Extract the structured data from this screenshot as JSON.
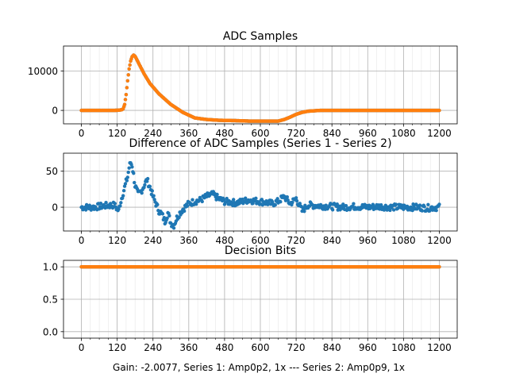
{
  "figure": {
    "footer": "Gain: -2.0077, Series 1: Amp0p2, 1x --- Series 2: Amp0p9, 1x"
  },
  "colors": {
    "series1": "#1f77b4",
    "series2": "#ff7f0e"
  },
  "chart_data": [
    {
      "type": "scatter",
      "title": "ADC Samples",
      "xlabel": "",
      "ylabel": "",
      "xlim": [
        -60,
        1260
      ],
      "ylim": [
        -3400,
        16300
      ],
      "xticks": [
        0,
        120,
        240,
        360,
        480,
        600,
        720,
        840,
        960,
        1080,
        1200
      ],
      "xtick_labels": [
        "0",
        "120",
        "240",
        "360",
        "480",
        "600",
        "720",
        "840",
        "960",
        "1080",
        "1200"
      ],
      "yticks": [
        0,
        10000
      ],
      "ytick_labels": [
        "0",
        "10000"
      ],
      "grid": true,
      "series": [
        {
          "color": "#1f77b4",
          "x": [
            0,
            100,
            120,
            135,
            140,
            145,
            150,
            155,
            160,
            165,
            170,
            175,
            180,
            185,
            195,
            210,
            230,
            260,
            300,
            340,
            380,
            420,
            460,
            520,
            560,
            600,
            640,
            660,
            680,
            700,
            720,
            740,
            760,
            800,
            840,
            900,
            1000,
            1100,
            1200
          ],
          "y": [
            0,
            0,
            20,
            150,
            400,
            1500,
            4000,
            7500,
            10500,
            12500,
            13600,
            14000,
            13700,
            13000,
            11500,
            9300,
            6800,
            4200,
            1500,
            -500,
            -1900,
            -2300,
            -2500,
            -2600,
            -2700,
            -2700,
            -2700,
            -2700,
            -2300,
            -1700,
            -1000,
            -500,
            -200,
            0,
            0,
            0,
            0,
            0,
            0
          ]
        },
        {
          "color": "#ff7f0e",
          "x": [
            0,
            100,
            120,
            135,
            140,
            145,
            150,
            155,
            160,
            165,
            170,
            175,
            180,
            185,
            195,
            210,
            230,
            260,
            300,
            340,
            380,
            420,
            460,
            520,
            560,
            600,
            640,
            660,
            680,
            700,
            720,
            740,
            760,
            800,
            840,
            900,
            1000,
            1100,
            1200
          ],
          "y": [
            0,
            0,
            20,
            150,
            400,
            1500,
            4000,
            7500,
            10500,
            12500,
            13600,
            14000,
            13700,
            13000,
            11500,
            9300,
            6800,
            4200,
            1500,
            -500,
            -1900,
            -2300,
            -2500,
            -2600,
            -2700,
            -2700,
            -2700,
            -2700,
            -2300,
            -1700,
            -1000,
            -500,
            -200,
            0,
            0,
            0,
            0,
            0,
            0
          ]
        }
      ]
    },
    {
      "type": "scatter",
      "title": "Difference of ADC Samples (Series 1 - Series 2)",
      "xlabel": "",
      "ylabel": "",
      "xlim": [
        -60,
        1260
      ],
      "ylim": [
        -33,
        75
      ],
      "xticks": [
        0,
        120,
        240,
        360,
        480,
        600,
        720,
        840,
        960,
        1080,
        1200
      ],
      "xtick_labels": [
        "0",
        "120",
        "240",
        "360",
        "480",
        "600",
        "720",
        "840",
        "960",
        "1080",
        "1200"
      ],
      "yticks": [
        0,
        50
      ],
      "ytick_labels": [
        "0",
        "50"
      ],
      "grid": true,
      "series": [
        {
          "color": "#1f77b4",
          "x": [
            0,
            40,
            80,
            110,
            125,
            130,
            140,
            150,
            155,
            160,
            165,
            170,
            175,
            180,
            190,
            200,
            210,
            220,
            230,
            240,
            250,
            260,
            270,
            280,
            290,
            300,
            310,
            320,
            330,
            340,
            360,
            380,
            400,
            420,
            440,
            460,
            480,
            520,
            560,
            600,
            640,
            660,
            680,
            700,
            720,
            740,
            760,
            800,
            840,
            880,
            920,
            960,
            1000,
            1040,
            1080,
            1120,
            1160,
            1200
          ],
          "y": [
            0,
            0,
            2,
            3,
            -5,
            5,
            20,
            35,
            42,
            55,
            62,
            58,
            45,
            30,
            18,
            22,
            30,
            38,
            28,
            15,
            5,
            -5,
            -10,
            -20,
            -8,
            -22,
            -25,
            -15,
            -8,
            -3,
            5,
            8,
            10,
            15,
            18,
            12,
            8,
            6,
            10,
            8,
            5,
            8,
            15,
            5,
            12,
            -5,
            3,
            2,
            1,
            0,
            1,
            0,
            1,
            0,
            0,
            0,
            -1,
            0
          ]
        }
      ]
    },
    {
      "type": "scatter",
      "title": "Decision Bits",
      "xlabel": "",
      "ylabel": "",
      "xlim": [
        -60,
        1260
      ],
      "ylim": [
        -0.1,
        1.1
      ],
      "xticks": [
        0,
        120,
        240,
        360,
        480,
        600,
        720,
        840,
        960,
        1080,
        1200
      ],
      "xtick_labels": [
        "0",
        "120",
        "240",
        "360",
        "480",
        "600",
        "720",
        "840",
        "960",
        "1080",
        "1200"
      ],
      "yticks": [
        0,
        0.5,
        1
      ],
      "ytick_labels": [
        "0.0",
        "0.5",
        "1.0"
      ],
      "grid": true,
      "series": [
        {
          "color": "#1f77b4",
          "x": [
            0,
            1200
          ],
          "y": [
            1,
            1
          ]
        },
        {
          "color": "#ff7f0e",
          "x": [
            0,
            1200
          ],
          "y": [
            1,
            1
          ]
        }
      ]
    }
  ]
}
